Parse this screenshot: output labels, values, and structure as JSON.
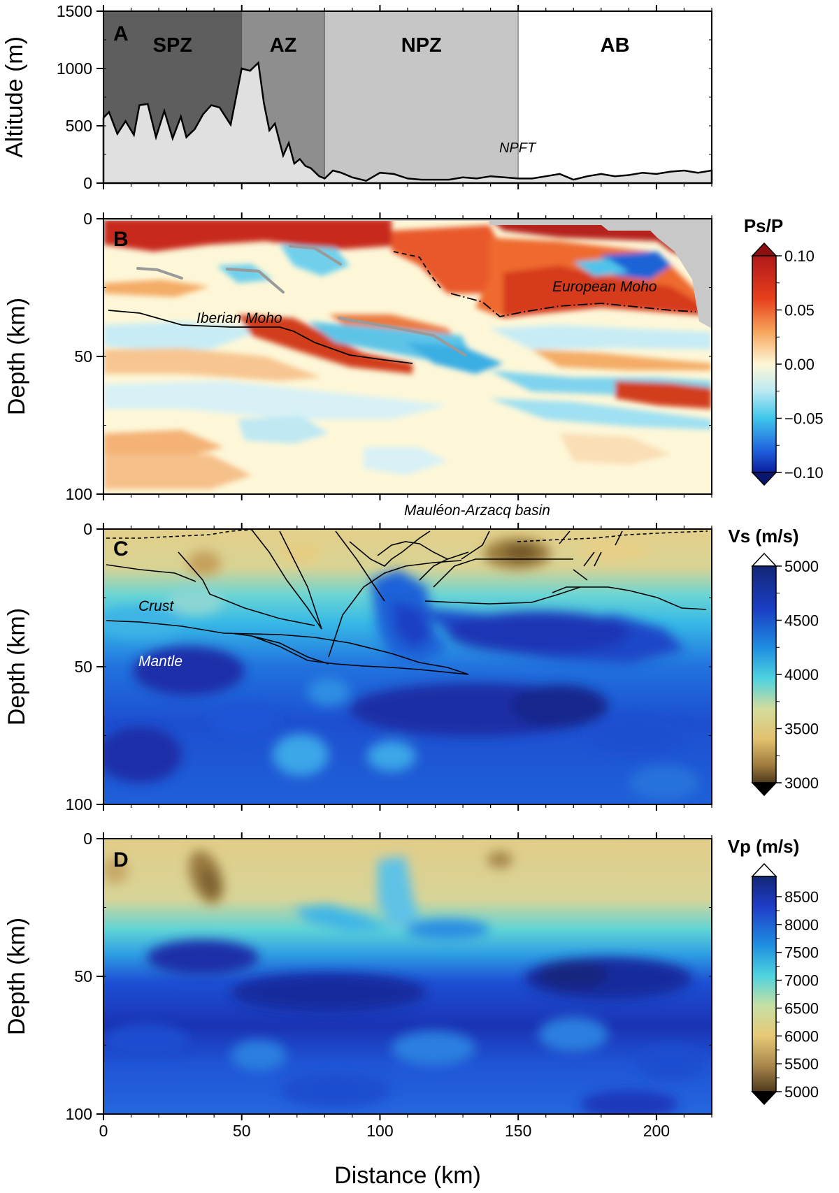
{
  "chart_data": [
    {
      "panel": "A",
      "type": "area",
      "ylabel": "Altitude (m)",
      "xlim": [
        0,
        220
      ],
      "ylim": [
        0,
        1500
      ],
      "y_ticks": [
        0,
        500,
        1000,
        1500
      ],
      "zones": [
        {
          "label": "SPZ",
          "x_range": [
            0,
            50
          ],
          "color": "#5e5e5e"
        },
        {
          "label": "AZ",
          "x_range": [
            50,
            80
          ],
          "color": "#8e8e8e"
        },
        {
          "label": "NPZ",
          "x_range": [
            80,
            150
          ],
          "color": "#c6c6c6"
        },
        {
          "label": "AB",
          "x_range": [
            150,
            220
          ],
          "color": "#ffffff"
        }
      ],
      "annotation": "NPFT",
      "topography": {
        "x": [
          0,
          2,
          5,
          8,
          11,
          13,
          16,
          19,
          22,
          25,
          28,
          30,
          33,
          36,
          39,
          42,
          46,
          50,
          53,
          56,
          58,
          60,
          62,
          65,
          67,
          69,
          71,
          73,
          75,
          78,
          80,
          83,
          86,
          90,
          95,
          100,
          105,
          110,
          115,
          120,
          125,
          130,
          135,
          140,
          145,
          150,
          155,
          160,
          165,
          170,
          175,
          180,
          185,
          190,
          195,
          200,
          205,
          210,
          215,
          220
        ],
        "y": [
          570,
          620,
          430,
          540,
          420,
          680,
          690,
          400,
          630,
          390,
          580,
          400,
          470,
          600,
          680,
          660,
          510,
          1000,
          980,
          1050,
          700,
          460,
          520,
          240,
          350,
          170,
          210,
          150,
          130,
          60,
          40,
          110,
          90,
          50,
          20,
          90,
          80,
          40,
          30,
          30,
          30,
          50,
          40,
          60,
          50,
          40,
          40,
          60,
          80,
          30,
          60,
          80,
          60,
          70,
          90,
          80,
          100,
          110,
          90,
          110
        ]
      }
    },
    {
      "panel": "B",
      "type": "heatmap",
      "ylabel": "Depth (km)",
      "xlim": [
        0,
        220
      ],
      "ylim": [
        0,
        100
      ],
      "y_ticks": [
        0,
        50,
        100
      ],
      "colorbar_title": "Ps/P",
      "colorbar_ticks": [
        "0.10",
        "0.05",
        "0.00",
        "−0.05",
        "−0.10"
      ],
      "annotations": [
        "Iberian Moho",
        "European Moho"
      ]
    },
    {
      "panel": "C",
      "type": "heatmap",
      "ylabel": "Depth (km)",
      "xlim": [
        0,
        220
      ],
      "ylim": [
        0,
        100
      ],
      "y_ticks": [
        0,
        50,
        100
      ],
      "colorbar_title": "Vs (m/s)",
      "colorbar_ticks": [
        "5000",
        "4500",
        "4000",
        "3500",
        "3000"
      ],
      "annotations": [
        "Crust",
        "Mantle"
      ],
      "top_label": "Mauléon-Arzacq basin"
    },
    {
      "panel": "D",
      "type": "heatmap",
      "ylabel": "Depth (km)",
      "xlabel": "Distance (km)",
      "xlim": [
        0,
        220
      ],
      "ylim": [
        0,
        100
      ],
      "y_ticks": [
        0,
        50,
        100
      ],
      "x_ticks": [
        0,
        50,
        100,
        150,
        200
      ],
      "colorbar_title": "Vp (m/s)",
      "colorbar_ticks": [
        "8500",
        "8000",
        "7500",
        "7000",
        "6500",
        "6000",
        "5500",
        "5000"
      ]
    }
  ]
}
